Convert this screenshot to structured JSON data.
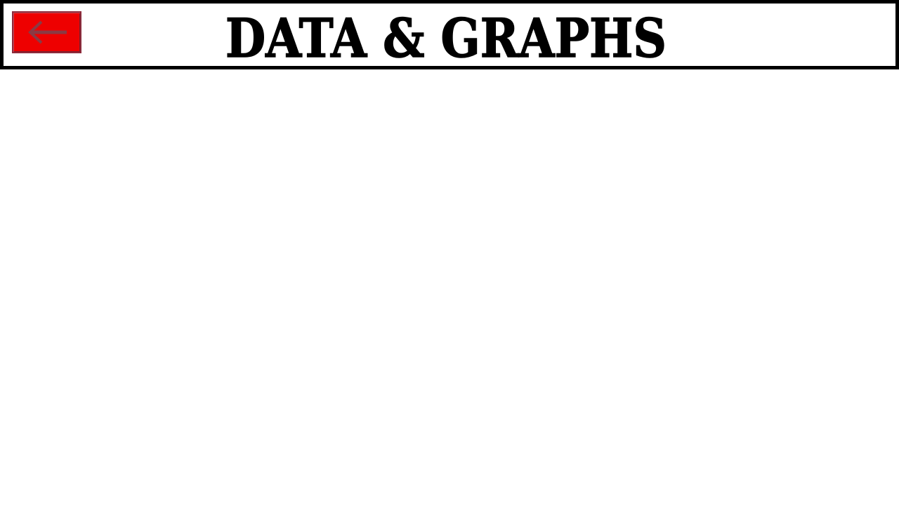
{
  "header": {
    "title": "DATA & GRAPHS",
    "back_button": {
      "icon": "left-arrow-icon",
      "color": "#ee0000"
    }
  }
}
